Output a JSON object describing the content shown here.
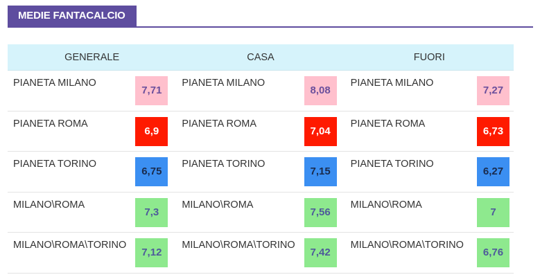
{
  "header": {
    "title": "MEDIE FANTACALCIO",
    "accent": "#5e4d9f"
  },
  "columns": [
    "GENERALE",
    "CASA",
    "FUORI"
  ],
  "badge_colors": {
    "pink": "#ffc0cd",
    "red": "#ff1a00",
    "blue": "#3b8ff2",
    "green": "#8ee98e"
  },
  "rows": [
    {
      "cells": [
        {
          "name": "PIANETA MILANO",
          "value": "7,71",
          "color": "pink"
        },
        {
          "name": "PIANETA MILANO",
          "value": "8,08",
          "color": "pink"
        },
        {
          "name": "PIANETA MILANO",
          "value": "7,27",
          "color": "pink"
        }
      ]
    },
    {
      "cells": [
        {
          "name": "PIANETA ROMA",
          "value": "6,9",
          "color": "red"
        },
        {
          "name": "PIANETA ROMA",
          "value": "7,04",
          "color": "red"
        },
        {
          "name": "PIANETA ROMA",
          "value": "6,73",
          "color": "red"
        }
      ]
    },
    {
      "cells": [
        {
          "name": "PIANETA TORINO",
          "value": "6,75",
          "color": "blue"
        },
        {
          "name": "PIANETA TORINO",
          "value": "7,15",
          "color": "blue"
        },
        {
          "name": "PIANETA TORINO",
          "value": "6,27",
          "color": "blue"
        }
      ]
    },
    {
      "cells": [
        {
          "name": "MILANO\\ROMA",
          "value": "7,3",
          "color": "green"
        },
        {
          "name": "MILANO\\ROMA",
          "value": "7,56",
          "color": "green"
        },
        {
          "name": "MILANO\\ROMA",
          "value": "7",
          "color": "green"
        }
      ]
    },
    {
      "cells": [
        {
          "name": "MILANO\\ROMA\\TORINO",
          "value": "7,12",
          "color": "green"
        },
        {
          "name": "MILANO\\ROMA\\TORINO",
          "value": "7,42",
          "color": "green"
        },
        {
          "name": "MILANO\\ROMA\\TORINO",
          "value": "6,76",
          "color": "green"
        }
      ]
    }
  ]
}
